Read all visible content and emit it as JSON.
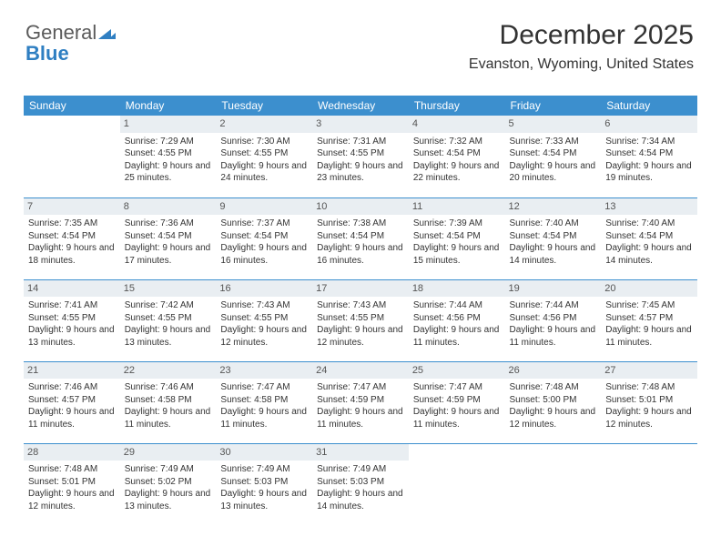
{
  "logo": {
    "part1": "General",
    "part2": "Blue"
  },
  "title": "December 2025",
  "location": "Evanston, Wyoming, United States",
  "daysOfWeek": [
    "Sunday",
    "Monday",
    "Tuesday",
    "Wednesday",
    "Thursday",
    "Friday",
    "Saturday"
  ],
  "header_bg": "#3c8fce",
  "header_fg": "#ffffff",
  "daynum_bg": "#e9eef2",
  "weeks": [
    [
      {
        "n": "",
        "sunrise": "",
        "sunset": "",
        "daylight": ""
      },
      {
        "n": "1",
        "sunrise": "Sunrise: 7:29 AM",
        "sunset": "Sunset: 4:55 PM",
        "daylight": "Daylight: 9 hours and 25 minutes."
      },
      {
        "n": "2",
        "sunrise": "Sunrise: 7:30 AM",
        "sunset": "Sunset: 4:55 PM",
        "daylight": "Daylight: 9 hours and 24 minutes."
      },
      {
        "n": "3",
        "sunrise": "Sunrise: 7:31 AM",
        "sunset": "Sunset: 4:55 PM",
        "daylight": "Daylight: 9 hours and 23 minutes."
      },
      {
        "n": "4",
        "sunrise": "Sunrise: 7:32 AM",
        "sunset": "Sunset: 4:54 PM",
        "daylight": "Daylight: 9 hours and 22 minutes."
      },
      {
        "n": "5",
        "sunrise": "Sunrise: 7:33 AM",
        "sunset": "Sunset: 4:54 PM",
        "daylight": "Daylight: 9 hours and 20 minutes."
      },
      {
        "n": "6",
        "sunrise": "Sunrise: 7:34 AM",
        "sunset": "Sunset: 4:54 PM",
        "daylight": "Daylight: 9 hours and 19 minutes."
      }
    ],
    [
      {
        "n": "7",
        "sunrise": "Sunrise: 7:35 AM",
        "sunset": "Sunset: 4:54 PM",
        "daylight": "Daylight: 9 hours and 18 minutes."
      },
      {
        "n": "8",
        "sunrise": "Sunrise: 7:36 AM",
        "sunset": "Sunset: 4:54 PM",
        "daylight": "Daylight: 9 hours and 17 minutes."
      },
      {
        "n": "9",
        "sunrise": "Sunrise: 7:37 AM",
        "sunset": "Sunset: 4:54 PM",
        "daylight": "Daylight: 9 hours and 16 minutes."
      },
      {
        "n": "10",
        "sunrise": "Sunrise: 7:38 AM",
        "sunset": "Sunset: 4:54 PM",
        "daylight": "Daylight: 9 hours and 16 minutes."
      },
      {
        "n": "11",
        "sunrise": "Sunrise: 7:39 AM",
        "sunset": "Sunset: 4:54 PM",
        "daylight": "Daylight: 9 hours and 15 minutes."
      },
      {
        "n": "12",
        "sunrise": "Sunrise: 7:40 AM",
        "sunset": "Sunset: 4:54 PM",
        "daylight": "Daylight: 9 hours and 14 minutes."
      },
      {
        "n": "13",
        "sunrise": "Sunrise: 7:40 AM",
        "sunset": "Sunset: 4:54 PM",
        "daylight": "Daylight: 9 hours and 14 minutes."
      }
    ],
    [
      {
        "n": "14",
        "sunrise": "Sunrise: 7:41 AM",
        "sunset": "Sunset: 4:55 PM",
        "daylight": "Daylight: 9 hours and 13 minutes."
      },
      {
        "n": "15",
        "sunrise": "Sunrise: 7:42 AM",
        "sunset": "Sunset: 4:55 PM",
        "daylight": "Daylight: 9 hours and 13 minutes."
      },
      {
        "n": "16",
        "sunrise": "Sunrise: 7:43 AM",
        "sunset": "Sunset: 4:55 PM",
        "daylight": "Daylight: 9 hours and 12 minutes."
      },
      {
        "n": "17",
        "sunrise": "Sunrise: 7:43 AM",
        "sunset": "Sunset: 4:55 PM",
        "daylight": "Daylight: 9 hours and 12 minutes."
      },
      {
        "n": "18",
        "sunrise": "Sunrise: 7:44 AM",
        "sunset": "Sunset: 4:56 PM",
        "daylight": "Daylight: 9 hours and 11 minutes."
      },
      {
        "n": "19",
        "sunrise": "Sunrise: 7:44 AM",
        "sunset": "Sunset: 4:56 PM",
        "daylight": "Daylight: 9 hours and 11 minutes."
      },
      {
        "n": "20",
        "sunrise": "Sunrise: 7:45 AM",
        "sunset": "Sunset: 4:57 PM",
        "daylight": "Daylight: 9 hours and 11 minutes."
      }
    ],
    [
      {
        "n": "21",
        "sunrise": "Sunrise: 7:46 AM",
        "sunset": "Sunset: 4:57 PM",
        "daylight": "Daylight: 9 hours and 11 minutes."
      },
      {
        "n": "22",
        "sunrise": "Sunrise: 7:46 AM",
        "sunset": "Sunset: 4:58 PM",
        "daylight": "Daylight: 9 hours and 11 minutes."
      },
      {
        "n": "23",
        "sunrise": "Sunrise: 7:47 AM",
        "sunset": "Sunset: 4:58 PM",
        "daylight": "Daylight: 9 hours and 11 minutes."
      },
      {
        "n": "24",
        "sunrise": "Sunrise: 7:47 AM",
        "sunset": "Sunset: 4:59 PM",
        "daylight": "Daylight: 9 hours and 11 minutes."
      },
      {
        "n": "25",
        "sunrise": "Sunrise: 7:47 AM",
        "sunset": "Sunset: 4:59 PM",
        "daylight": "Daylight: 9 hours and 11 minutes."
      },
      {
        "n": "26",
        "sunrise": "Sunrise: 7:48 AM",
        "sunset": "Sunset: 5:00 PM",
        "daylight": "Daylight: 9 hours and 12 minutes."
      },
      {
        "n": "27",
        "sunrise": "Sunrise: 7:48 AM",
        "sunset": "Sunset: 5:01 PM",
        "daylight": "Daylight: 9 hours and 12 minutes."
      }
    ],
    [
      {
        "n": "28",
        "sunrise": "Sunrise: 7:48 AM",
        "sunset": "Sunset: 5:01 PM",
        "daylight": "Daylight: 9 hours and 12 minutes."
      },
      {
        "n": "29",
        "sunrise": "Sunrise: 7:49 AM",
        "sunset": "Sunset: 5:02 PM",
        "daylight": "Daylight: 9 hours and 13 minutes."
      },
      {
        "n": "30",
        "sunrise": "Sunrise: 7:49 AM",
        "sunset": "Sunset: 5:03 PM",
        "daylight": "Daylight: 9 hours and 13 minutes."
      },
      {
        "n": "31",
        "sunrise": "Sunrise: 7:49 AM",
        "sunset": "Sunset: 5:03 PM",
        "daylight": "Daylight: 9 hours and 14 minutes."
      },
      {
        "n": "",
        "sunrise": "",
        "sunset": "",
        "daylight": ""
      },
      {
        "n": "",
        "sunrise": "",
        "sunset": "",
        "daylight": ""
      },
      {
        "n": "",
        "sunrise": "",
        "sunset": "",
        "daylight": ""
      }
    ]
  ]
}
